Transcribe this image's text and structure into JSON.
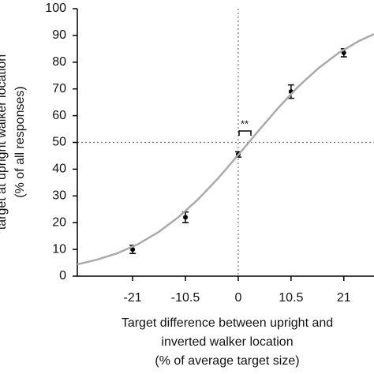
{
  "chart_data": {
    "type": "scatter",
    "y_label_lines": [
      "target at upright walker location",
      "(% of all responses)"
    ],
    "x_label_lines": [
      "Target difference between upright and",
      "inverted walker location",
      "(% of average target size)"
    ],
    "xlim": [
      -32,
      27
    ],
    "ylim": [
      0,
      100
    ],
    "xticks": [
      -21,
      -10.5,
      0,
      10.5,
      21
    ],
    "yticks": [
      0,
      10,
      20,
      30,
      40,
      50,
      60,
      70,
      80,
      90,
      100
    ],
    "reference_x": 0,
    "reference_y": 50,
    "annotation": "**",
    "series": [
      {
        "kind": "points",
        "color": "#000000",
        "x": [
          -21,
          -10.5,
          0,
          10.5,
          21
        ],
        "values": [
          10,
          22,
          45.5,
          69,
          83.5
        ],
        "errors": [
          1.5,
          2,
          1,
          2.5,
          1.5
        ]
      },
      {
        "kind": "fit",
        "color": "#aaaaaa",
        "x": [
          -32,
          -28,
          -24,
          -20,
          -16,
          -12,
          -8,
          -4,
          0,
          4,
          8,
          12,
          16,
          20,
          24,
          27
        ],
        "values": [
          4.4,
          6.2,
          8.6,
          11.9,
          16.3,
          21.9,
          28.7,
          36.6,
          45.3,
          54.3,
          63.0,
          71.0,
          77.8,
          83.5,
          87.9,
          90.5
        ]
      }
    ]
  }
}
